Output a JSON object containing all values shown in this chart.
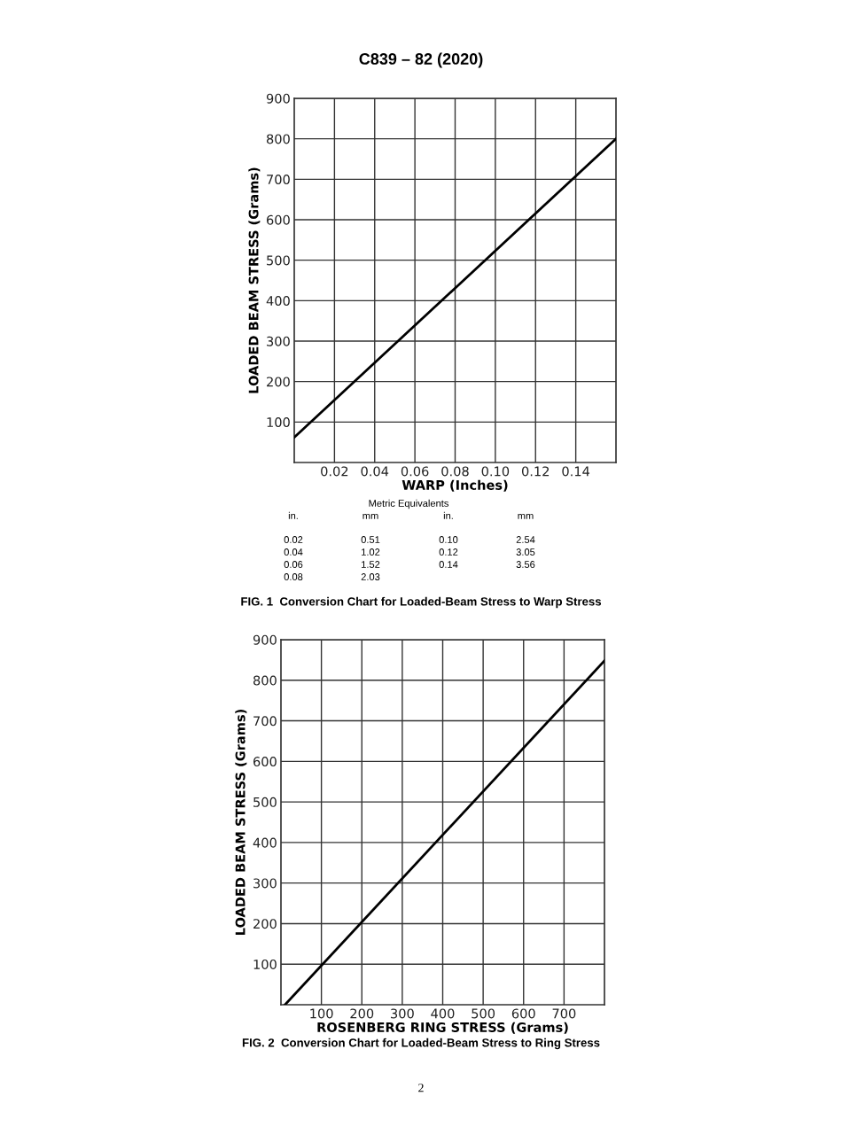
{
  "chart_data": [
    {
      "type": "line",
      "title": "FIG. 1  Conversion Chart for Loaded-Beam Stress to Warp Stress",
      "xlabel": "WARP (Inches)",
      "ylabel": "LOADED BEAM STRESS (Grams)",
      "x": [
        0,
        0.16
      ],
      "series": [
        {
          "color": "#000000",
          "values": [
            62,
            800
          ]
        }
      ],
      "xlim": [
        0,
        0.16
      ],
      "xticks": [
        0.02,
        0.04,
        0.06,
        0.08,
        {
          "value": 0.1,
          "label": "0.10"
        },
        0.12,
        0.14
      ],
      "ylim": [
        0,
        900
      ],
      "yticks": [
        100,
        200,
        300,
        400,
        500,
        600,
        700,
        800,
        900
      ],
      "grid": true,
      "line_style": "solid",
      "marker": "none",
      "annotations": [
        "C839 – 82 (2020)",
        "Metric Equivalents",
        "in.",
        "mm",
        "in.",
        "mm",
        "0.02",
        "0.51",
        "0.10",
        "2.54",
        "0.04",
        "1.02",
        "0.12",
        "3.05",
        "0.06",
        "1.52",
        "0.14",
        "3.56",
        "0.08",
        "2.03"
      ]
    },
    {
      "type": "line",
      "title": "FIG. 2  Conversion Chart for Loaded-Beam Stress to Ring Stress",
      "xlabel": "ROSENBERG RING STRESS (Grams)",
      "ylabel": "LOADED BEAM STRESS (Grams)",
      "x": [
        10,
        800
      ],
      "series": [
        {
          "color": "#000000",
          "values": [
            0,
            848
          ]
        }
      ],
      "xlim": [
        0,
        800
      ],
      "xticks": [
        100,
        200,
        300,
        400,
        500,
        600,
        700
      ],
      "ylim": [
        0,
        900
      ],
      "yticks": [
        100,
        200,
        300,
        400,
        500,
        600,
        700,
        800,
        900
      ],
      "grid": true,
      "line_style": "solid",
      "marker": "none",
      "annotations": [
        "2"
      ]
    }
  ]
}
